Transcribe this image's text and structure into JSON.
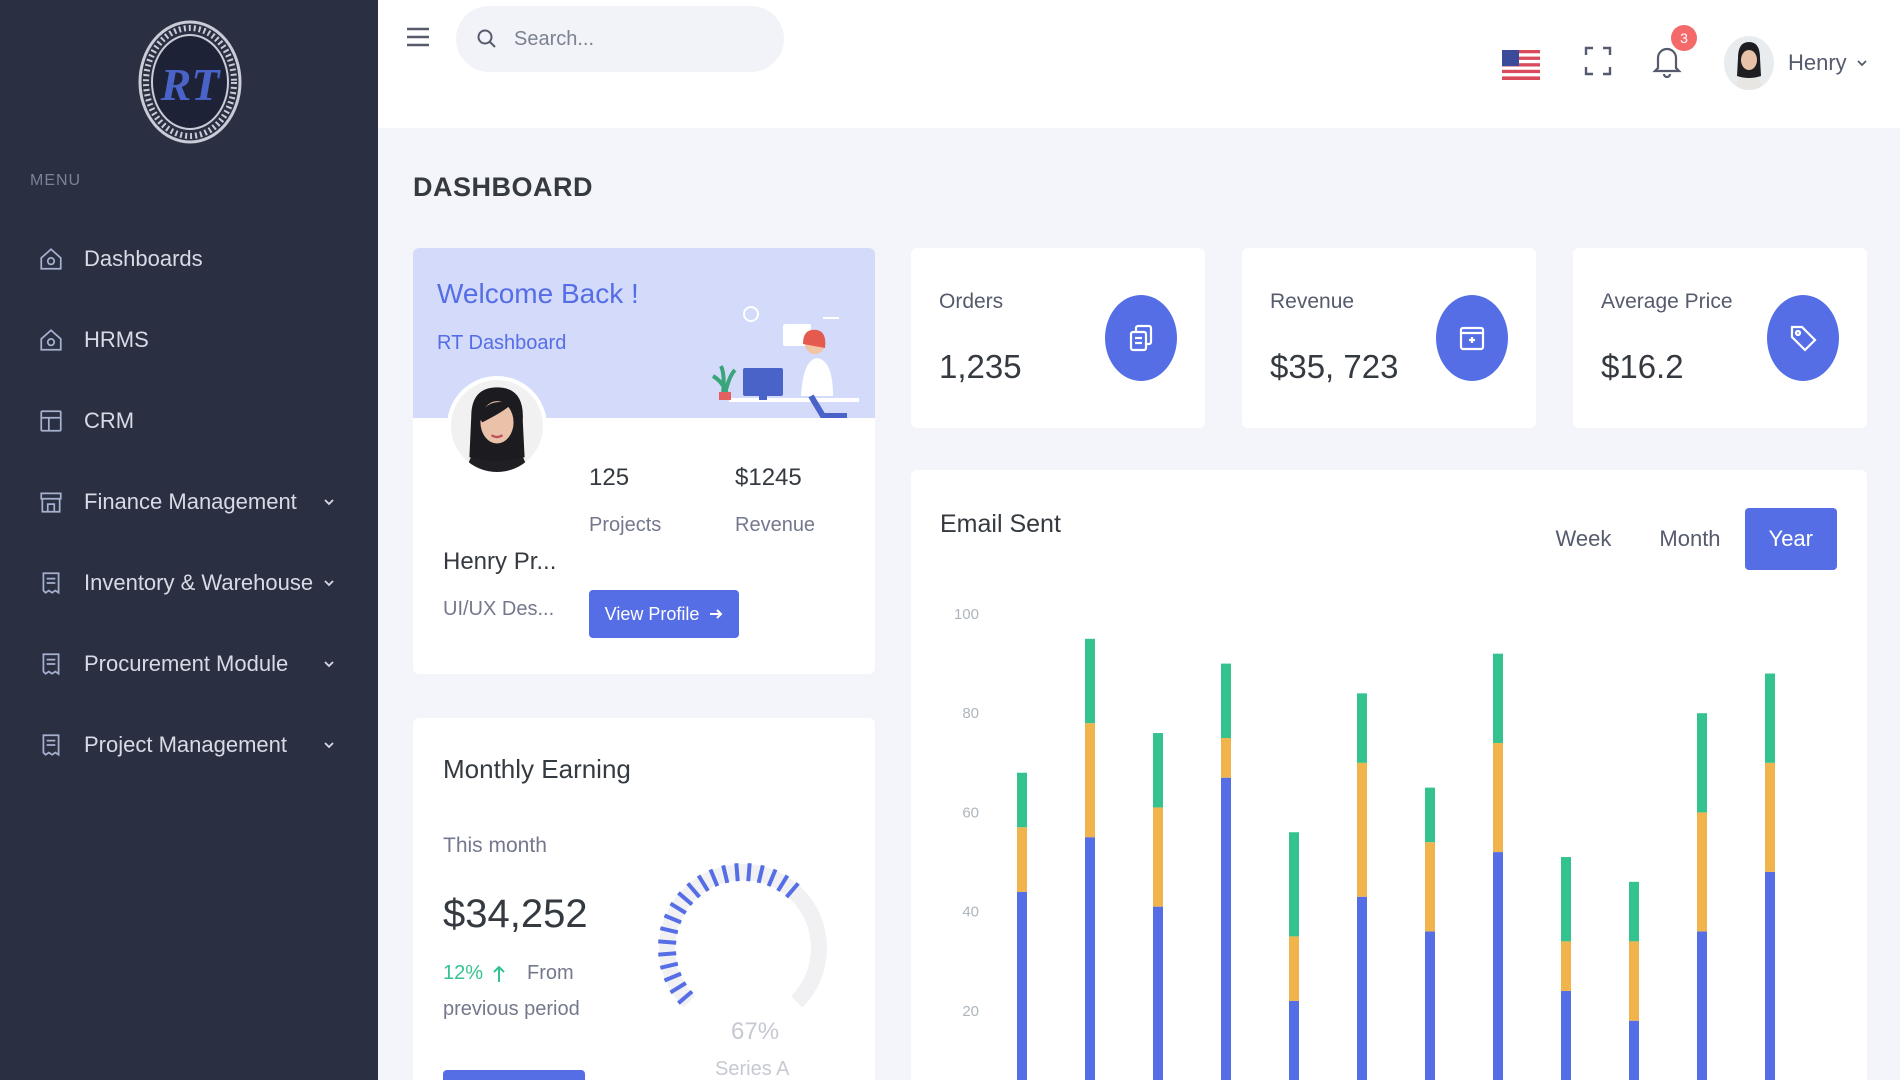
{
  "colors": {
    "sidebar": "#2a3042",
    "accent": "#556ee6",
    "success": "#34c38f",
    "warning": "#f1b44c",
    "danger": "#f46a6a"
  },
  "sidebar": {
    "logo_text": "RT",
    "menu_label": "MENU",
    "items": [
      {
        "label": "Dashboards",
        "icon": "home-icon",
        "has_submenu": false
      },
      {
        "label": "HRMS",
        "icon": "home-icon",
        "has_submenu": false
      },
      {
        "label": "CRM",
        "icon": "layout-icon",
        "has_submenu": false
      },
      {
        "label": "Finance Management",
        "icon": "store-icon",
        "has_submenu": true
      },
      {
        "label": "Inventory & Warehouse",
        "icon": "receipt-icon",
        "has_submenu": true
      },
      {
        "label": "Procurement Module",
        "icon": "receipt-icon",
        "has_submenu": true
      },
      {
        "label": "Project Management",
        "icon": "receipt-icon",
        "has_submenu": true
      }
    ]
  },
  "topbar": {
    "search_placeholder": "Search...",
    "notification_count": "3",
    "user_name": "Henry"
  },
  "page": {
    "title": "DASHBOARD"
  },
  "welcome": {
    "title": "Welcome Back !",
    "subtitle": "RT Dashboard",
    "name": "Henry Pr...",
    "role": "UI/UX Des...",
    "projects_value": "125",
    "projects_label": "Projects",
    "revenue_value": "$1245",
    "revenue_label": "Revenue",
    "button": "View Profile"
  },
  "stats": [
    {
      "label": "Orders",
      "value": "1,235",
      "icon": "copy-icon"
    },
    {
      "label": "Revenue",
      "value": "$35, 723",
      "icon": "archive-icon"
    },
    {
      "label": "Average Price",
      "value": "$16.2",
      "icon": "tag-icon"
    }
  ],
  "monthly": {
    "title": "Monthly Earning",
    "subtitle": "This month",
    "value": "$34,252",
    "change": "12%",
    "from": "From",
    "from_rest": "previous period",
    "gauge_value": 67,
    "gauge_label": "67%",
    "gauge_series": "Series A"
  },
  "email": {
    "title": "Email Sent",
    "tabs": [
      "Week",
      "Month",
      "Year"
    ],
    "active_tab": "Year"
  },
  "chart_data": {
    "type": "bar",
    "stacked": true,
    "title": "Email Sent",
    "yticks": [
      20,
      40,
      60,
      80,
      100
    ],
    "ylim": [
      0,
      100
    ],
    "series": [
      {
        "color": "#556ee6",
        "values": [
          44,
          55,
          41,
          67,
          22,
          43,
          36,
          52,
          24,
          18,
          36,
          48
        ]
      },
      {
        "color": "#f1b44c",
        "values": [
          13,
          23,
          20,
          8,
          13,
          27,
          18,
          22,
          10,
          16,
          24,
          22
        ]
      },
      {
        "color": "#34c38f",
        "values": [
          11,
          17,
          15,
          15,
          21,
          14,
          11,
          18,
          17,
          12,
          20,
          18
        ]
      }
    ]
  }
}
